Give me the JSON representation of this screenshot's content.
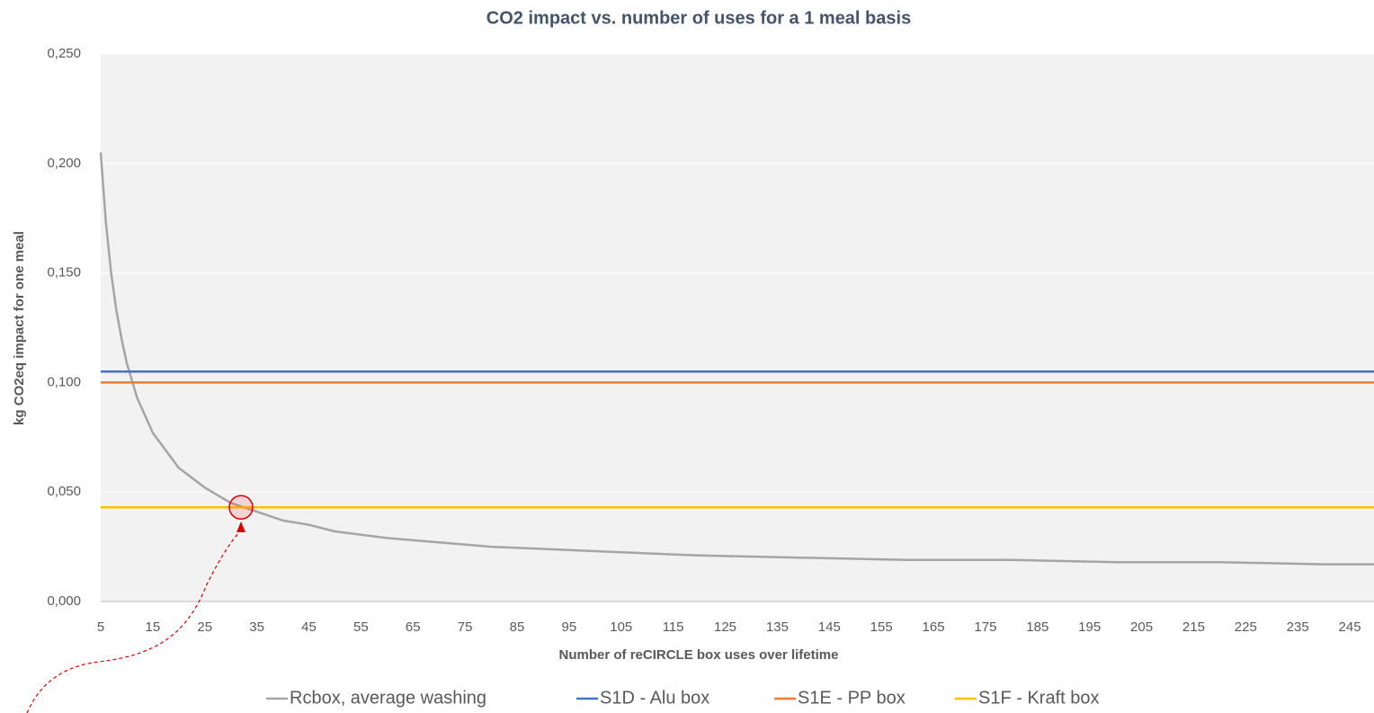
{
  "chart_data": {
    "type": "line",
    "title": "CO2 impact vs. number of uses for a 1 meal basis",
    "xlabel": "Number of reCIRCLE box uses over lifetime",
    "ylabel": "kg CO2eq impact for one meal",
    "xlim": [
      5,
      250
    ],
    "ylim": [
      0,
      0.25
    ],
    "xticks": [
      5,
      15,
      25,
      35,
      45,
      55,
      65,
      75,
      85,
      95,
      105,
      115,
      125,
      135,
      145,
      155,
      165,
      175,
      185,
      195,
      205,
      215,
      225,
      235,
      245
    ],
    "yticks": [
      {
        "value": 0,
        "label": "0,000"
      },
      {
        "value": 0.05,
        "label": "0,050"
      },
      {
        "value": 0.1,
        "label": "0,100"
      },
      {
        "value": 0.15,
        "label": "0,150"
      },
      {
        "value": 0.2,
        "label": "0,200"
      },
      {
        "value": 0.25,
        "label": "0,250"
      }
    ],
    "grid": true,
    "legend": "bottom",
    "series": [
      {
        "name": "Rcbox, average washing",
        "color": "#a5a5a5",
        "x": [
          5,
          6,
          7,
          8,
          9,
          10,
          12,
          15,
          20,
          25,
          30,
          35,
          40,
          45,
          50,
          60,
          70,
          80,
          90,
          100,
          120,
          140,
          160,
          180,
          200,
          220,
          240,
          250
        ],
        "values": [
          0.205,
          0.173,
          0.15,
          0.133,
          0.12,
          0.109,
          0.093,
          0.077,
          0.061,
          0.052,
          0.045,
          0.041,
          0.037,
          0.035,
          0.032,
          0.029,
          0.027,
          0.025,
          0.024,
          0.023,
          0.021,
          0.02,
          0.019,
          0.019,
          0.018,
          0.018,
          0.017,
          0.017
        ]
      },
      {
        "name": "S1D - Alu box",
        "color": "#4472c4",
        "x": [
          5,
          250
        ],
        "values": [
          0.105,
          0.105
        ]
      },
      {
        "name": "S1E - PP box",
        "color": "#ed7d31",
        "x": [
          5,
          250
        ],
        "values": [
          0.1,
          0.1
        ]
      },
      {
        "name": "S1F - Kraft box",
        "color": "#ffc000",
        "x": [
          5,
          250
        ],
        "values": [
          0.043,
          0.043
        ]
      }
    ]
  }
}
